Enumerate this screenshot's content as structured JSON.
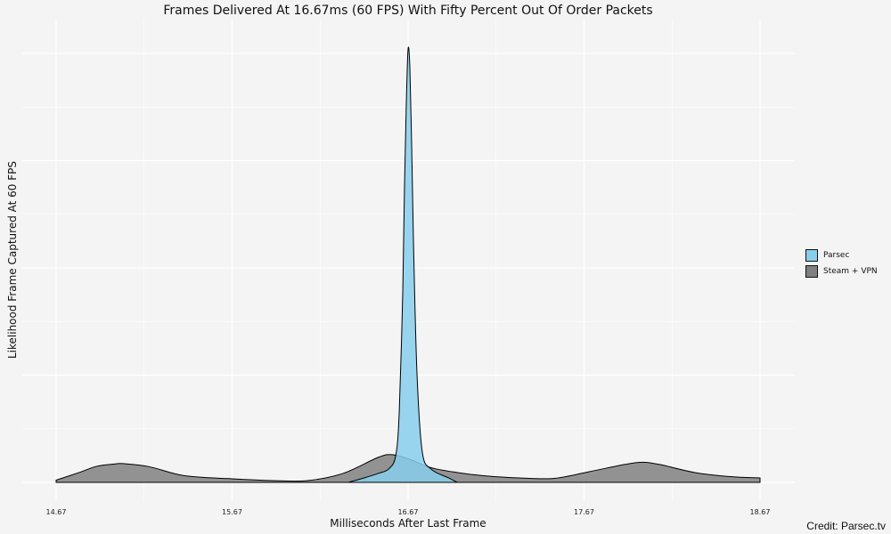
{
  "chart_data": {
    "type": "area",
    "title": "Frames Delivered At 16.67ms (60 FPS) With Fifty Percent Out Of Order Packets",
    "xlabel": "Milliseconds After Last Frame",
    "ylabel": "Likelihood Frame Captured At 60 FPS",
    "xlim": [
      14.67,
      18.67
    ],
    "ylim": [
      0,
      1
    ],
    "x_ticks": [
      "14.67",
      "15.67",
      "16.67",
      "17.67",
      "18.67"
    ],
    "grid": true,
    "legend_position": "right",
    "series": [
      {
        "name": "Parsec",
        "color": "#87ceeb",
        "x": [
          16.33,
          16.42,
          16.5,
          16.56,
          16.6,
          16.62,
          16.64,
          16.65,
          16.66,
          16.67,
          16.68,
          16.69,
          16.7,
          16.72,
          16.75,
          16.8,
          16.9,
          16.95
        ],
        "y": [
          0,
          0.01,
          0.02,
          0.03,
          0.06,
          0.16,
          0.43,
          0.67,
          0.85,
          0.97,
          0.93,
          0.76,
          0.55,
          0.25,
          0.07,
          0.03,
          0.01,
          0
        ]
      },
      {
        "name": "Steam + VPN",
        "color": "#808080",
        "x": [
          14.67,
          14.8,
          14.9,
          15.0,
          15.05,
          15.2,
          15.4,
          15.67,
          15.9,
          16.1,
          16.3,
          16.5,
          16.58,
          16.67,
          16.8,
          16.95,
          17.1,
          17.3,
          17.5,
          17.7,
          17.9,
          18.0,
          18.1,
          18.3,
          18.5,
          18.67
        ],
        "y": [
          0.005,
          0.022,
          0.036,
          0.041,
          0.042,
          0.035,
          0.015,
          0.008,
          0.004,
          0.004,
          0.02,
          0.056,
          0.062,
          0.053,
          0.033,
          0.022,
          0.015,
          0.01,
          0.009,
          0.024,
          0.04,
          0.045,
          0.04,
          0.022,
          0.013,
          0.01
        ]
      }
    ]
  },
  "credit": "Credit: Parsec.tv"
}
